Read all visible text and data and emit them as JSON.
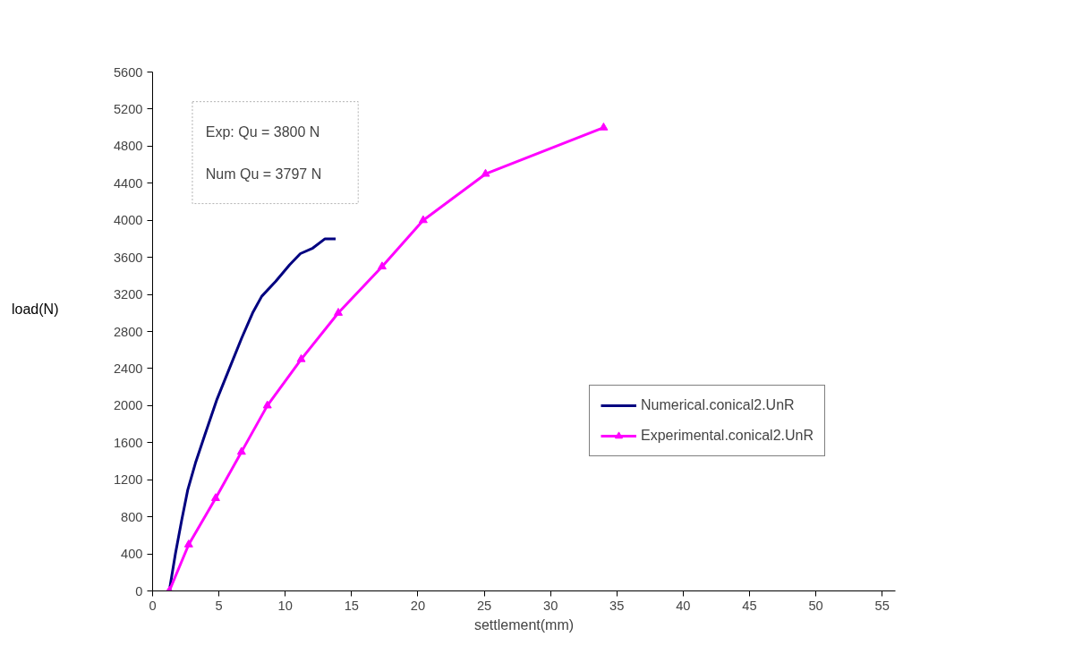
{
  "chart_data": {
    "type": "line",
    "xlabel": "settlement(mm)",
    "ylabel": "load(N)",
    "xlim": [
      0,
      56
    ],
    "xticks": [
      0,
      5,
      10,
      15,
      20,
      25,
      30,
      35,
      40,
      45,
      50,
      55
    ],
    "ylim": [
      0,
      5600
    ],
    "yticks": [
      0,
      400,
      800,
      1200,
      1600,
      2000,
      2400,
      2800,
      3200,
      3600,
      4000,
      4400,
      4800,
      5200,
      5600
    ],
    "grid": false,
    "legend": "right",
    "annotations": [
      "Exp: Qu = 3800 N",
      "Num Qu = 3797 N"
    ],
    "series": [
      {
        "name": "Numerical.conical2.UnR",
        "color": "#000080",
        "marker": "none",
        "x": [
          1.26,
          1.72,
          2.19,
          2.65,
          3.23,
          3.93,
          4.86,
          5.79,
          6.72,
          7.54,
          8.23,
          9.28,
          10.33,
          11.14,
          12.08,
          13.0,
          13.8
        ],
        "values": [
          0,
          400,
          760,
          1090,
          1380,
          1680,
          2070,
          2400,
          2730,
          3000,
          3180,
          3340,
          3520,
          3640,
          3700,
          3800,
          3800
        ]
      },
      {
        "name": "Experimental.conical2.UnR",
        "color": "#ff00ff",
        "marker": "triangle",
        "x": [
          1.26,
          2.72,
          4.75,
          6.7,
          8.65,
          11.2,
          14.0,
          17.3,
          20.4,
          25.1,
          34.0
        ],
        "values": [
          0,
          500,
          1000,
          1500,
          2000,
          2500,
          3000,
          3500,
          4000,
          4500,
          5000
        ]
      }
    ]
  }
}
